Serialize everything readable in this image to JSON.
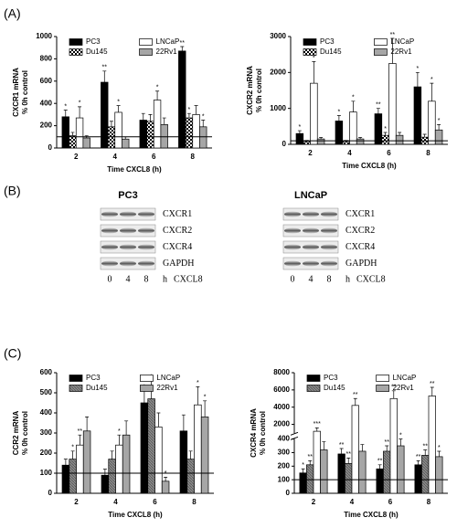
{
  "panel_labels": [
    "(A)",
    "(B)",
    "(C)"
  ],
  "chart_data": [
    {
      "type": "bar",
      "ylabel": [
        "CXCR1 mRNA",
        "% 0h control"
      ],
      "xlabel": "Time CXCL8 (h)",
      "categories": [
        "2",
        "4",
        "6",
        "8"
      ],
      "ylim": [
        0,
        1000
      ],
      "yticks": [
        0,
        200,
        400,
        600,
        800,
        1000
      ],
      "refline": 100,
      "series": [
        {
          "name": "PC3",
          "color": "#000000",
          "values": [
            280,
            590,
            250,
            870
          ],
          "errors": [
            60,
            100,
            60,
            40
          ],
          "sig": [
            "*",
            "**",
            null,
            "**"
          ]
        },
        {
          "name": "Du145",
          "color": "#ffffff",
          "pattern": "checker",
          "values": [
            110,
            190,
            240,
            270
          ],
          "errors": [
            30,
            50,
            60,
            40
          ],
          "sig": [
            null,
            null,
            null,
            "*"
          ]
        },
        {
          "name": "LNCaP",
          "color": "#ffffff",
          "values": [
            270,
            320,
            430,
            300
          ],
          "errors": [
            100,
            60,
            80,
            80
          ],
          "sig": [
            "*",
            "*",
            "*",
            null
          ]
        },
        {
          "name": "22Rv1",
          "color": "#a6a6a6",
          "values": [
            90,
            80,
            210,
            190
          ],
          "errors": [
            20,
            20,
            60,
            60
          ],
          "sig": [
            null,
            null,
            null,
            "*"
          ]
        }
      ]
    },
    {
      "type": "bar",
      "ylabel": [
        "CXCR2 mRNA",
        "% 0h control"
      ],
      "xlabel": "Time CXCL8 (h)",
      "categories": [
        "2",
        "4",
        "6",
        "8"
      ],
      "ylim": [
        0,
        3000
      ],
      "yticks": [
        0,
        1000,
        2000,
        3000
      ],
      "refline": 100,
      "series": [
        {
          "name": "PC3",
          "color": "#000000",
          "values": [
            300,
            650,
            850,
            1600
          ],
          "errors": [
            80,
            150,
            150,
            400
          ],
          "sig": [
            "*",
            "*",
            "**",
            "*"
          ]
        },
        {
          "name": "Du145",
          "color": "#ffffff",
          "pattern": "checker",
          "values": [
            80,
            80,
            250,
            200
          ],
          "errors": [
            30,
            30,
            80,
            80
          ],
          "sig": [
            null,
            null,
            "*",
            null
          ]
        },
        {
          "name": "LNCaP",
          "color": "#ffffff",
          "values": [
            1700,
            900,
            2250,
            1200
          ],
          "errors": [
            600,
            300,
            700,
            500
          ],
          "sig": [
            "*",
            "*",
            "**",
            "*"
          ]
        },
        {
          "name": "22Rv1",
          "color": "#a6a6a6",
          "values": [
            150,
            150,
            250,
            400
          ],
          "errors": [
            40,
            40,
            80,
            150
          ],
          "sig": [
            null,
            null,
            null,
            "*"
          ]
        }
      ]
    },
    {
      "type": "bar",
      "ylabel": [
        "CCR2 mRNA",
        "% 0h control"
      ],
      "xlabel": "Time CXCL8 (h)",
      "categories": [
        "2",
        "4",
        "6",
        "8"
      ],
      "ylim": [
        0,
        600
      ],
      "yticks": [
        0,
        100,
        200,
        300,
        400,
        500,
        600
      ],
      "refline": 100,
      "series": [
        {
          "name": "PC3",
          "color": "#000000",
          "values": [
            140,
            90,
            450,
            310
          ],
          "errors": [
            30,
            30,
            60,
            80
          ],
          "sig": [
            null,
            null,
            "*",
            null
          ]
        },
        {
          "name": "Du145",
          "color": "#8c8c8c",
          "pattern": "hatch",
          "values": [
            170,
            170,
            470,
            170
          ],
          "errors": [
            40,
            40,
            90,
            40
          ],
          "sig": [
            "*",
            null,
            "*",
            null
          ]
        },
        {
          "name": "LNCaP",
          "color": "#ffffff",
          "values": [
            240,
            240,
            330,
            440
          ],
          "errors": [
            50,
            50,
            70,
            90
          ],
          "sig": [
            "**",
            "*",
            null,
            "*"
          ]
        },
        {
          "name": "22Rv1",
          "color": "#a6a6a6",
          "values": [
            310,
            290,
            60,
            380
          ],
          "errors": [
            70,
            70,
            20,
            80
          ],
          "sig": [
            null,
            null,
            "*",
            "*"
          ]
        }
      ]
    },
    {
      "type": "bar",
      "ylabel": [
        "CXCR4 mRNA",
        "% 0h control"
      ],
      "xlabel": "Time  CXCL8 (h)",
      "categories": [
        "2",
        "4",
        "6",
        "8"
      ],
      "ylim": [
        0,
        8000
      ],
      "ybreak": [
        400,
        1000
      ],
      "yticks": [
        0,
        100,
        200,
        300,
        400,
        2000,
        4000,
        6000,
        8000
      ],
      "refline": 100,
      "series": [
        {
          "name": "PC3",
          "color": "#000000",
          "values": [
            150,
            290,
            180,
            210
          ],
          "errors": [
            30,
            40,
            30,
            30
          ],
          "sig": [
            "*",
            "**",
            "**",
            "**"
          ]
        },
        {
          "name": "Du145",
          "color": "#8c8c8c",
          "pattern": "hatch",
          "values": [
            210,
            220,
            310,
            280
          ],
          "errors": [
            30,
            40,
            40,
            40
          ],
          "sig": [
            "**",
            "**",
            "**",
            "**"
          ]
        },
        {
          "name": "LNCaP",
          "color": "#ffffff",
          "values": [
            1200,
            4200,
            5000,
            5300
          ],
          "errors": [
            400,
            800,
            900,
            1000
          ],
          "sig": [
            "***",
            "**",
            "**",
            "**"
          ]
        },
        {
          "name": "22Rv1",
          "color": "#a6a6a6",
          "values": [
            320,
            310,
            350,
            270
          ],
          "errors": [
            60,
            50,
            50,
            40
          ],
          "sig": [
            null,
            null,
            "*",
            "*"
          ]
        }
      ]
    }
  ],
  "blot": {
    "groups": [
      {
        "title": "PC3",
        "bands": [
          "CXCR1",
          "CXCR2",
          "CXCR4",
          "GAPDH"
        ],
        "lanes": [
          "0",
          "4",
          "8"
        ],
        "unit": "h",
        "treatment": "CXCL8"
      },
      {
        "title": "LNCaP",
        "bands": [
          "CXCR1",
          "CXCR2",
          "CXCR4",
          "GAPDH"
        ],
        "lanes": [
          "0",
          "4",
          "8"
        ],
        "unit": "h",
        "treatment": "CXCL8"
      }
    ]
  }
}
